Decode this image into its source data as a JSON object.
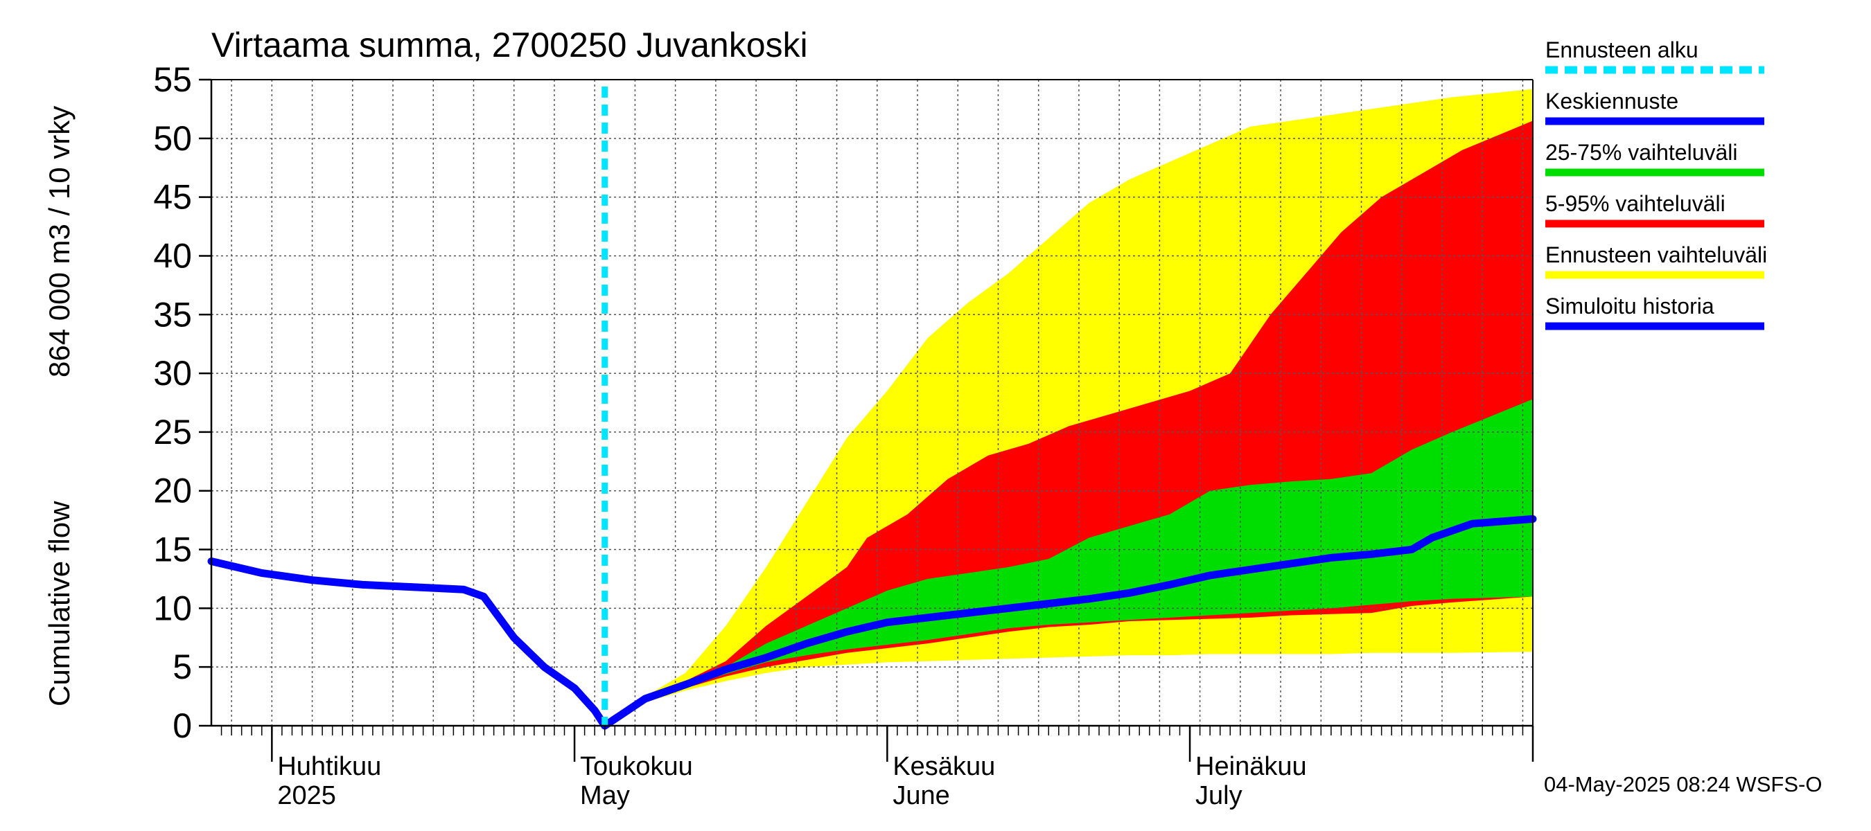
{
  "chart_data": {
    "type": "area",
    "title": "Virtaama summa, 2700250 Juvankoski",
    "ylabel_line1": "864 000 m3 / 10 vrky",
    "ylabel_line2": "Cumulative flow",
    "ylim": [
      0,
      55
    ],
    "y_ticks": [
      0,
      5,
      10,
      15,
      20,
      25,
      30,
      35,
      40,
      45,
      50,
      55
    ],
    "xlim": [
      "2025-03-26",
      "2025-08-04"
    ],
    "month_labels": [
      {
        "date": "2025-04-01",
        "fi": "Huhtikuu",
        "en": "2025"
      },
      {
        "date": "2025-05-01",
        "fi": "Toukokuu",
        "en": "May"
      },
      {
        "date": "2025-06-01",
        "fi": "Kesäkuu",
        "en": "June"
      },
      {
        "date": "2025-07-01",
        "fi": "Heinäkuu",
        "en": "July"
      }
    ],
    "forecast_start": "2025-05-04",
    "grid": true,
    "legend_position": "right",
    "legend": [
      {
        "label": "Ennusteen alku",
        "color": "#00e5ff",
        "style": "dashed"
      },
      {
        "label": "Keskiennuste",
        "color": "#0000ff",
        "style": "solid"
      },
      {
        "label": "25-75% vaihteluväli",
        "color": "#00dd00",
        "style": "solid"
      },
      {
        "label": "5-95% vaihteluväli",
        "color": "#ff0000",
        "style": "solid"
      },
      {
        "label": "Ennusteen vaihteluväli",
        "color": "#ffff00",
        "style": "solid"
      },
      {
        "label": "Simuloitu historia",
        "color": "#0000ff",
        "style": "solid"
      }
    ],
    "series": [
      {
        "name": "Simuloitu historia",
        "color": "#0000ff",
        "points": [
          [
            "2025-03-26",
            14.0
          ],
          [
            "2025-03-31",
            13.0
          ],
          [
            "2025-04-05",
            12.4
          ],
          [
            "2025-04-10",
            12.0
          ],
          [
            "2025-04-15",
            11.8
          ],
          [
            "2025-04-20",
            11.6
          ],
          [
            "2025-04-22",
            11.0
          ],
          [
            "2025-04-25",
            7.5
          ],
          [
            "2025-04-28",
            5.0
          ],
          [
            "2025-05-01",
            3.2
          ],
          [
            "2025-05-03",
            1.3
          ],
          [
            "2025-05-04",
            0.0
          ]
        ]
      },
      {
        "name": "Ennusteen vaihteluväli",
        "color": "#ffff00",
        "upper": [
          [
            "2025-05-04",
            0.0
          ],
          [
            "2025-05-08",
            2.5
          ],
          [
            "2025-05-12",
            4.5
          ],
          [
            "2025-05-16",
            8.5
          ],
          [
            "2025-05-20",
            13.5
          ],
          [
            "2025-05-24",
            19.0
          ],
          [
            "2025-05-28",
            24.5
          ],
          [
            "2025-06-01",
            28.5
          ],
          [
            "2025-06-05",
            33.0
          ],
          [
            "2025-06-09",
            36.0
          ],
          [
            "2025-06-13",
            38.5
          ],
          [
            "2025-06-17",
            41.5
          ],
          [
            "2025-06-21",
            44.5
          ],
          [
            "2025-06-25",
            46.5
          ],
          [
            "2025-06-29",
            48.0
          ],
          [
            "2025-07-03",
            49.5
          ],
          [
            "2025-07-07",
            51.0
          ],
          [
            "2025-07-11",
            51.5
          ],
          [
            "2025-07-15",
            52.0
          ],
          [
            "2025-07-19",
            52.5
          ],
          [
            "2025-07-23",
            53.0
          ],
          [
            "2025-07-27",
            53.5
          ],
          [
            "2025-08-04",
            54.2
          ]
        ],
        "lower": [
          [
            "2025-05-04",
            0.0
          ],
          [
            "2025-05-08",
            2.0
          ],
          [
            "2025-05-12",
            3.0
          ],
          [
            "2025-05-16",
            3.8
          ],
          [
            "2025-05-20",
            4.5
          ],
          [
            "2025-05-24",
            5.0
          ],
          [
            "2025-05-28",
            5.2
          ],
          [
            "2025-06-01",
            5.4
          ],
          [
            "2025-06-05",
            5.5
          ],
          [
            "2025-06-09",
            5.6
          ],
          [
            "2025-06-13",
            5.7
          ],
          [
            "2025-06-17",
            5.8
          ],
          [
            "2025-06-21",
            5.9
          ],
          [
            "2025-06-25",
            6.0
          ],
          [
            "2025-06-29",
            6.0
          ],
          [
            "2025-07-03",
            6.1
          ],
          [
            "2025-07-07",
            6.1
          ],
          [
            "2025-07-11",
            6.1
          ],
          [
            "2025-07-15",
            6.1
          ],
          [
            "2025-07-19",
            6.2
          ],
          [
            "2025-07-23",
            6.2
          ],
          [
            "2025-07-27",
            6.2
          ],
          [
            "2025-08-04",
            6.3
          ]
        ]
      },
      {
        "name": "5-95% vaihteluväli",
        "color": "#ff0000",
        "upper": [
          [
            "2025-05-04",
            0.0
          ],
          [
            "2025-05-08",
            2.3
          ],
          [
            "2025-05-12",
            3.8
          ],
          [
            "2025-05-16",
            5.5
          ],
          [
            "2025-05-20",
            8.5
          ],
          [
            "2025-05-24",
            11.0
          ],
          [
            "2025-05-28",
            13.5
          ],
          [
            "2025-05-30",
            16.0
          ],
          [
            "2025-06-03",
            18.0
          ],
          [
            "2025-06-07",
            21.0
          ],
          [
            "2025-06-11",
            23.0
          ],
          [
            "2025-06-15",
            24.0
          ],
          [
            "2025-06-19",
            25.5
          ],
          [
            "2025-06-23",
            26.5
          ],
          [
            "2025-06-27",
            27.5
          ],
          [
            "2025-07-01",
            28.5
          ],
          [
            "2025-07-05",
            30.0
          ],
          [
            "2025-07-09",
            35.0
          ],
          [
            "2025-07-12",
            38.0
          ],
          [
            "2025-07-16",
            42.0
          ],
          [
            "2025-07-20",
            45.0
          ],
          [
            "2025-07-24",
            47.0
          ],
          [
            "2025-07-28",
            49.0
          ],
          [
            "2025-08-04",
            51.5
          ]
        ],
        "lower": [
          [
            "2025-05-04",
            0.0
          ],
          [
            "2025-05-08",
            2.1
          ],
          [
            "2025-05-12",
            3.2
          ],
          [
            "2025-05-16",
            4.2
          ],
          [
            "2025-05-20",
            5.0
          ],
          [
            "2025-05-24",
            5.6
          ],
          [
            "2025-05-28",
            6.2
          ],
          [
            "2025-06-01",
            6.6
          ],
          [
            "2025-06-05",
            7.0
          ],
          [
            "2025-06-09",
            7.5
          ],
          [
            "2025-06-13",
            8.0
          ],
          [
            "2025-06-17",
            8.4
          ],
          [
            "2025-06-21",
            8.6
          ],
          [
            "2025-06-25",
            8.9
          ],
          [
            "2025-06-29",
            9.0
          ],
          [
            "2025-07-03",
            9.1
          ],
          [
            "2025-07-07",
            9.2
          ],
          [
            "2025-07-11",
            9.4
          ],
          [
            "2025-07-15",
            9.5
          ],
          [
            "2025-07-19",
            9.6
          ],
          [
            "2025-07-23",
            10.2
          ],
          [
            "2025-07-27",
            10.5
          ],
          [
            "2025-08-04",
            11.0
          ]
        ]
      },
      {
        "name": "25-75% vaihteluväli",
        "color": "#00dd00",
        "upper": [
          [
            "2025-05-04",
            0.0
          ],
          [
            "2025-05-08",
            2.2
          ],
          [
            "2025-05-12",
            3.6
          ],
          [
            "2025-05-16",
            5.0
          ],
          [
            "2025-05-20",
            7.0
          ],
          [
            "2025-05-24",
            8.5
          ],
          [
            "2025-05-28",
            10.0
          ],
          [
            "2025-06-01",
            11.5
          ],
          [
            "2025-06-05",
            12.5
          ],
          [
            "2025-06-09",
            13.0
          ],
          [
            "2025-06-13",
            13.5
          ],
          [
            "2025-06-17",
            14.2
          ],
          [
            "2025-06-21",
            16.0
          ],
          [
            "2025-06-25",
            17.0
          ],
          [
            "2025-06-29",
            18.0
          ],
          [
            "2025-07-03",
            20.0
          ],
          [
            "2025-07-07",
            20.5
          ],
          [
            "2025-07-11",
            20.8
          ],
          [
            "2025-07-15",
            21.0
          ],
          [
            "2025-07-19",
            21.5
          ],
          [
            "2025-07-23",
            23.5
          ],
          [
            "2025-07-27",
            25.0
          ],
          [
            "2025-08-04",
            27.8
          ]
        ],
        "lower": [
          [
            "2025-05-04",
            0.0
          ],
          [
            "2025-05-08",
            2.1
          ],
          [
            "2025-05-12",
            3.3
          ],
          [
            "2025-05-16",
            4.4
          ],
          [
            "2025-05-20",
            5.4
          ],
          [
            "2025-05-24",
            6.0
          ],
          [
            "2025-05-28",
            6.5
          ],
          [
            "2025-06-01",
            6.9
          ],
          [
            "2025-06-05",
            7.3
          ],
          [
            "2025-06-09",
            7.8
          ],
          [
            "2025-06-13",
            8.3
          ],
          [
            "2025-06-17",
            8.6
          ],
          [
            "2025-06-21",
            8.8
          ],
          [
            "2025-06-25",
            9.0
          ],
          [
            "2025-06-29",
            9.2
          ],
          [
            "2025-07-03",
            9.4
          ],
          [
            "2025-07-07",
            9.6
          ],
          [
            "2025-07-11",
            9.8
          ],
          [
            "2025-07-15",
            10.0
          ],
          [
            "2025-07-19",
            10.3
          ],
          [
            "2025-07-23",
            10.6
          ],
          [
            "2025-07-27",
            10.8
          ],
          [
            "2025-08-04",
            11.0
          ]
        ]
      },
      {
        "name": "Keskiennuste",
        "color": "#0000ff",
        "points": [
          [
            "2025-05-04",
            0.0
          ],
          [
            "2025-05-08",
            2.3
          ],
          [
            "2025-05-12",
            3.5
          ],
          [
            "2025-05-16",
            4.8
          ],
          [
            "2025-05-20",
            5.8
          ],
          [
            "2025-05-24",
            7.0
          ],
          [
            "2025-05-28",
            8.0
          ],
          [
            "2025-06-01",
            8.8
          ],
          [
            "2025-06-05",
            9.2
          ],
          [
            "2025-06-09",
            9.6
          ],
          [
            "2025-06-13",
            10.0
          ],
          [
            "2025-06-17",
            10.4
          ],
          [
            "2025-06-21",
            10.8
          ],
          [
            "2025-06-25",
            11.3
          ],
          [
            "2025-06-29",
            12.0
          ],
          [
            "2025-07-03",
            12.8
          ],
          [
            "2025-07-07",
            13.3
          ],
          [
            "2025-07-11",
            13.8
          ],
          [
            "2025-07-15",
            14.3
          ],
          [
            "2025-07-19",
            14.6
          ],
          [
            "2025-07-23",
            15.0
          ],
          [
            "2025-07-25",
            16.0
          ],
          [
            "2025-07-29",
            17.2
          ],
          [
            "2025-08-04",
            17.6
          ]
        ]
      }
    ]
  },
  "footer": {
    "timestamp": "04-May-2025 08:24 WSFS-O"
  }
}
